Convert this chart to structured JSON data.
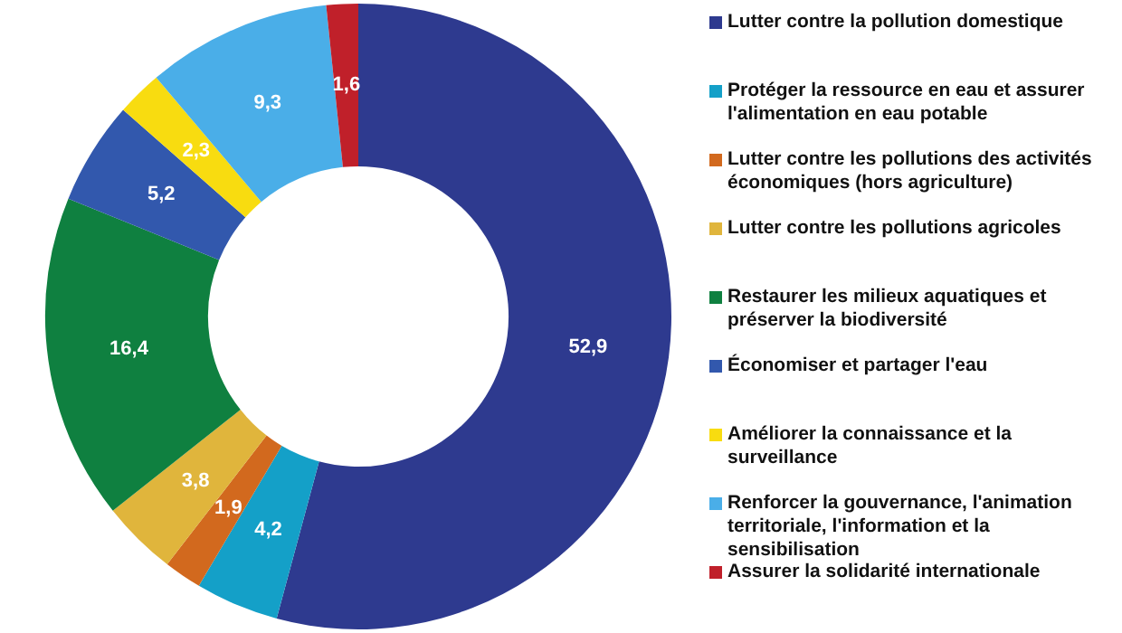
{
  "chart_data": {
    "type": "donut",
    "categories": [
      "Lutter contre la pollution domestique",
      "Protéger la ressource en eau et assurer l'alimentation en eau potable",
      "Lutter contre les pollutions des activités économiques (hors agriculture)",
      "Lutter contre les pollutions agricoles",
      "Restaurer les milieux aquatiques et préserver la biodiversité",
      "Économiser et partager l'eau",
      "Améliorer la connaissance et la surveillance",
      "Renforcer la gouvernance, l'animation territoriale, l'information et la sensibilisation",
      "Assurer la solidarité internationale"
    ],
    "values": [
      52.9,
      4.2,
      1.9,
      3.8,
      16.4,
      5.2,
      2.3,
      9.3,
      1.6
    ],
    "value_labels": [
      "52,9",
      "4,2",
      "1,9",
      "3,8",
      "16,4",
      "5,2",
      "2,3",
      "9,3",
      "1,6"
    ],
    "colors": [
      "#2e3a8f",
      "#14a0c8",
      "#d2691e",
      "#e0b53c",
      "#0f8040",
      "#3258ad",
      "#f8dc10",
      "#4aaee8",
      "#c0202a"
    ],
    "legend": "right"
  }
}
